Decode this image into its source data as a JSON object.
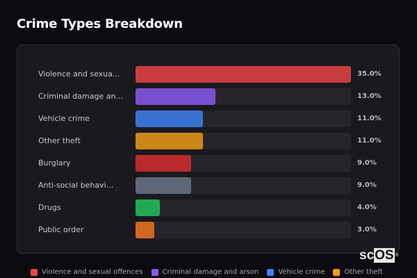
{
  "header": {
    "title": "Crime Types Breakdown"
  },
  "rows": [
    {
      "label": "Violence and sexua...",
      "value": "35.0%",
      "pct": 35.0,
      "color": "#c93c40"
    },
    {
      "label": "Criminal damage an...",
      "value": "13.0%",
      "pct": 13.0,
      "color": "#7a4fcf"
    },
    {
      "label": "Vehicle crime",
      "value": "11.0%",
      "pct": 11.0,
      "color": "#3a72d2"
    },
    {
      "label": "Other theft",
      "value": "11.0%",
      "pct": 11.0,
      "color": "#cd8618"
    },
    {
      "label": "Burglary",
      "value": "9.0%",
      "pct": 9.0,
      "color": "#bb2a2c"
    },
    {
      "label": "Anti-social behavi...",
      "value": "9.0%",
      "pct": 9.0,
      "color": "#5d6677"
    },
    {
      "label": "Drugs",
      "value": "4.0%",
      "pct": 4.0,
      "color": "#22a855"
    },
    {
      "label": "Public order",
      "value": "3.0%",
      "pct": 3.0,
      "color": "#d2661e"
    }
  ],
  "legend": [
    {
      "label": "Violence and sexual offences",
      "color": "#ef4444"
    },
    {
      "label": "Criminal damage and arson",
      "color": "#8b5cf6"
    },
    {
      "label": "Vehicle crime",
      "color": "#3b82f6"
    },
    {
      "label": "Other theft",
      "color": "#f59e0b"
    }
  ],
  "logo": {
    "text_sc": "sc",
    "text_os": "OS",
    "reg": "®"
  },
  "chart_data": {
    "type": "bar",
    "orientation": "horizontal",
    "title": "Crime Types Breakdown",
    "categories": [
      "Violence and sexual offences",
      "Criminal damage and arson",
      "Vehicle crime",
      "Other theft",
      "Burglary",
      "Anti-social behaviour",
      "Drugs",
      "Public order"
    ],
    "values": [
      35.0,
      13.0,
      11.0,
      11.0,
      9.0,
      9.0,
      4.0,
      3.0
    ],
    "value_labels": [
      "35.0%",
      "13.0%",
      "11.0%",
      "11.0%",
      "9.0%",
      "9.0%",
      "4.0%",
      "3.0%"
    ],
    "xlabel": "",
    "ylabel": "",
    "xlim": [
      0,
      35
    ],
    "grid": false,
    "legend_position": "bottom"
  }
}
